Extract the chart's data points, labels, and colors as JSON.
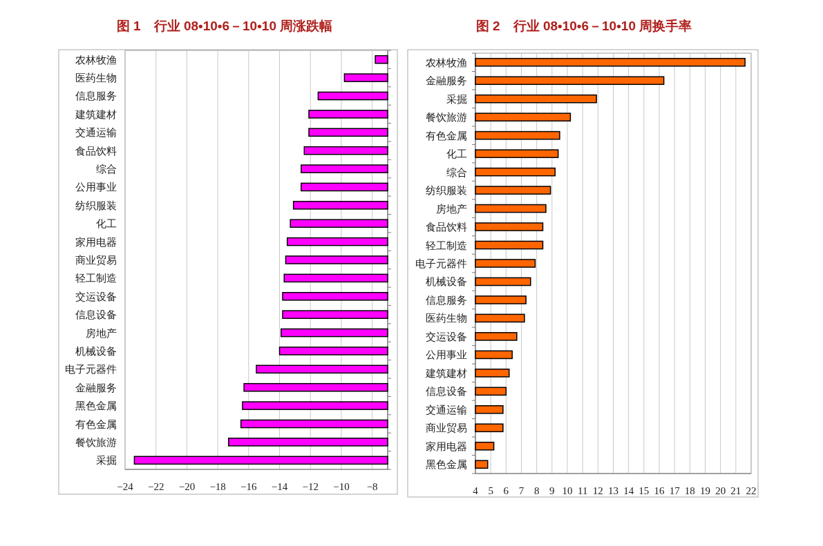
{
  "chart_data": [
    {
      "type": "bar",
      "orientation": "horizontal",
      "title": "图 1　行业 08•10•6－10•10 周涨跌幅",
      "categories": [
        "农林牧渔",
        "医药生物",
        "信息服务",
        "建筑建材",
        "交通运输",
        "食品饮料",
        "综合",
        "公用事业",
        "纺织服装",
        "化工",
        "家用电器",
        "商业贸易",
        "轻工制造",
        "交运设备",
        "信息设备",
        "房地产",
        "机械设备",
        "电子元器件",
        "金融服务",
        "黑色金属",
        "有色金属",
        "餐饮旅游",
        "采掘"
      ],
      "values": [
        -7.8,
        -9.8,
        -11.5,
        -12.1,
        -12.1,
        -12.4,
        -12.6,
        -12.6,
        -13.1,
        -13.3,
        -13.5,
        -13.6,
        -13.7,
        -13.8,
        -13.8,
        -13.9,
        -14.0,
        -15.5,
        -16.3,
        -16.4,
        -16.5,
        -17.3,
        -23.4
      ],
      "color": "#ff00ff",
      "xlim": [
        -24,
        -7
      ],
      "xticks": [
        -24,
        -22,
        -20,
        -18,
        -16,
        -14,
        -12,
        -10,
        -8
      ],
      "grid": "x"
    },
    {
      "type": "bar",
      "orientation": "horizontal",
      "title": "图 2　行业 08•10•6－10•10 周换手率",
      "categories": [
        "农林牧渔",
        "金融服务",
        "采掘",
        "餐饮旅游",
        "有色金属",
        "化工",
        "综合",
        "纺织服装",
        "房地产",
        "食品饮料",
        "轻工制造",
        "电子元器件",
        "机械设备",
        "信息服务",
        "医药生物",
        "交运设备",
        "公用事业",
        "建筑建材",
        "信息设备",
        "交通运输",
        "商业贸易",
        "家用电器",
        "黑色金属"
      ],
      "values": [
        21.6,
        16.3,
        11.9,
        10.2,
        9.5,
        9.4,
        9.2,
        8.9,
        8.6,
        8.4,
        8.4,
        7.9,
        7.6,
        7.3,
        7.2,
        6.7,
        6.4,
        6.2,
        6.0,
        5.8,
        5.8,
        5.2,
        4.8
      ],
      "color": "#ff6600",
      "xlim": [
        4,
        22
      ],
      "xticks": [
        4,
        5,
        6,
        7,
        8,
        9,
        10,
        11,
        12,
        13,
        14,
        15,
        16,
        17,
        18,
        19,
        20,
        21,
        22
      ],
      "grid": "x"
    }
  ]
}
